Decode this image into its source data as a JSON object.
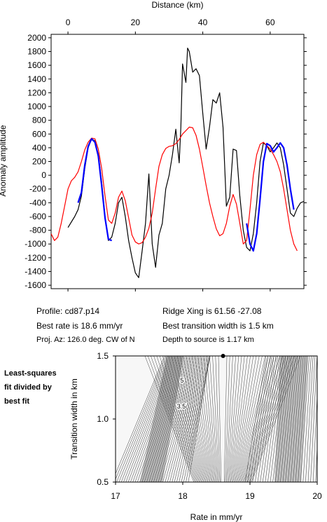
{
  "chart_data": [
    {
      "type": "line",
      "title": "",
      "xlabel": "Distance (km)",
      "ylabel": "Anomaly amplitude",
      "xlim": [
        -5,
        70
      ],
      "ylim": [
        -1650,
        2050
      ],
      "x_ticks": [
        0,
        20,
        40,
        60
      ],
      "y_ticks": [
        -1600,
        -1400,
        -1200,
        -1000,
        -800,
        -600,
        -400,
        -200,
        0,
        200,
        400,
        600,
        800,
        1000,
        1200,
        1400,
        1600,
        1800,
        2000
      ],
      "grid": false,
      "series": [
        {
          "color": "#000000",
          "x": [
            0,
            2,
            3,
            4,
            5,
            6,
            7,
            8,
            9,
            10,
            11,
            12,
            13,
            14,
            15,
            16,
            17,
            18,
            19,
            20,
            21,
            22,
            23,
            24,
            25,
            26,
            27,
            28,
            29,
            30,
            31,
            32,
            33,
            33.5,
            34,
            35,
            35.5,
            36,
            37,
            38,
            39,
            40,
            41,
            42,
            43,
            44,
            45,
            46,
            47,
            48,
            49,
            50,
            51,
            52,
            53,
            54,
            55,
            56,
            57,
            58,
            59,
            60,
            61,
            62,
            63,
            64,
            65,
            66,
            67,
            68,
            69,
            70
          ],
          "y": [
            -760,
            -600,
            -500,
            -300,
            100,
            400,
            530,
            500,
            300,
            -100,
            -600,
            -950,
            -900,
            -700,
            -400,
            -320,
            -600,
            -950,
            -1200,
            -1420,
            -1490,
            -1100,
            -700,
            20,
            -1000,
            -1340,
            -870,
            -700,
            -200,
            0,
            300,
            670,
            180,
            700,
            1620,
            1350,
            1850,
            1800,
            1500,
            1550,
            1450,
            900,
            380,
            700,
            1100,
            1050,
            1200,
            700,
            -450,
            -320,
            380,
            360,
            -300,
            -800,
            -1050,
            -1100,
            -850,
            -400,
            200,
            470,
            430,
            340,
            400,
            470,
            400,
            150,
            -200,
            -550,
            -600,
            -480,
            -400,
            -380
          ]
        },
        {
          "color": "#ff0000",
          "x": [
            -5,
            -4,
            -3,
            -2,
            -1,
            0,
            1,
            2,
            3,
            4,
            5,
            6,
            7,
            8,
            9,
            10,
            11,
            12,
            13,
            14,
            15,
            16,
            17,
            18,
            19,
            20,
            21,
            22,
            23,
            24,
            25,
            26,
            27,
            28,
            29,
            30,
            31,
            32,
            33,
            34,
            35,
            36,
            37,
            38,
            39,
            40,
            41,
            42,
            43,
            44,
            45,
            46,
            47,
            48,
            49,
            50,
            51,
            52,
            53,
            54,
            55,
            56,
            57,
            58,
            59,
            60,
            61,
            62,
            63,
            64,
            65,
            66,
            67,
            68
          ],
          "y": [
            -850,
            -950,
            -900,
            -700,
            -450,
            -200,
            -80,
            -30,
            50,
            200,
            370,
            480,
            540,
            530,
            380,
            100,
            -300,
            -650,
            -700,
            -550,
            -320,
            -230,
            -370,
            -620,
            -870,
            -970,
            -1000,
            -980,
            -900,
            -770,
            -550,
            -200,
            130,
            300,
            390,
            420,
            430,
            460,
            520,
            600,
            650,
            700,
            690,
            580,
            380,
            120,
            -150,
            -400,
            -600,
            -780,
            -880,
            -850,
            -700,
            -450,
            -280,
            -420,
            -700,
            -1000,
            -950,
            -500,
            0,
            300,
            450,
            480,
            430,
            380,
            300,
            200,
            50,
            -200,
            -500,
            -800,
            -1000,
            -1100
          ]
        },
        {
          "color": "#0000ff",
          "x": [
            3,
            4,
            5,
            6,
            7,
            8,
            9,
            10,
            11,
            12,
            13
          ],
          "y": [
            -400,
            -250,
            150,
            420,
            530,
            480,
            280,
            -150,
            -620,
            -930,
            -950
          ]
        },
        {
          "color": "#0000ff",
          "x": [
            53,
            54,
            55,
            56,
            57,
            58,
            59,
            60,
            61,
            62,
            63,
            64,
            65,
            66,
            67
          ],
          "y": [
            -700,
            -1000,
            -1100,
            -850,
            -350,
            200,
            460,
            430,
            340,
            400,
            470,
            400,
            150,
            -200,
            -500
          ]
        }
      ]
    },
    {
      "type": "heatmap",
      "title": "",
      "xlabel": "Rate in mm/yr",
      "ylabel": "Transition width in km",
      "xlim": [
        17,
        20
      ],
      "ylim": [
        0.5,
        1.5
      ],
      "x_ticks": [
        17,
        18,
        19,
        20
      ],
      "y_ticks": [
        "0.5",
        "1.0",
        "1.5"
      ],
      "contour_labels": [
        "5",
        "3.5"
      ],
      "best_fit_marker": {
        "rate": 18.6,
        "width": 1.5
      },
      "grid": false
    }
  ],
  "profile_info": {
    "profile": "Profile: cd87.p14",
    "best_rate": "Best rate is 18.6 mm/yr",
    "proj_az": "Proj. Az: 126.0 deg. CW of N",
    "ridge_xing": "Ridge Xing is 61.56 -27.08",
    "best_width": "Best transition width is 1.5 km",
    "depth": "Depth to source is   1.17 km"
  },
  "side_note": [
    "Least-squares",
    "fit divided by",
    "best fit"
  ]
}
